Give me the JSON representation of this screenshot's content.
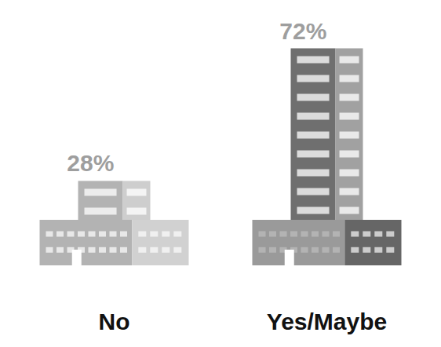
{
  "chart_data": {
    "type": "bar",
    "categories": [
      "No",
      "Yes/Maybe"
    ],
    "values": [
      28,
      72
    ],
    "value_labels": [
      "28%",
      "72%"
    ],
    "colors": [
      "#b3b3b3",
      "#6f6f6f"
    ],
    "ylim": [
      0,
      75
    ],
    "data_labels": true,
    "tick_labels": "x"
  }
}
